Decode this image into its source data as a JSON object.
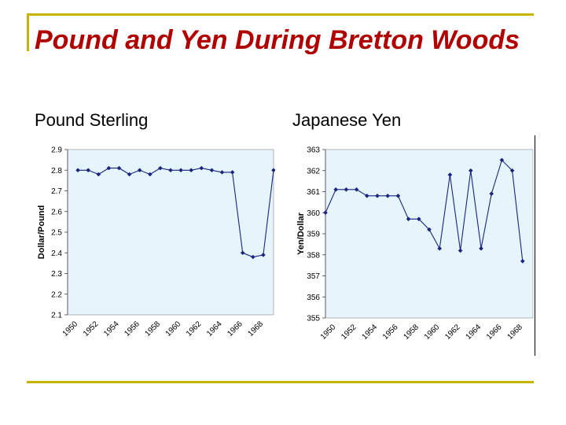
{
  "slide": {
    "title": "Pound and Yen During Bretton Woods",
    "left_heading": "Pound Sterling",
    "right_heading": "Japanese Yen",
    "accent_color": "#c8b400",
    "title_color": "#b00000"
  },
  "chart_data": [
    {
      "type": "line",
      "title": "",
      "xlabel": "",
      "ylabel": "Dollar/Pound",
      "ylim": [
        2.1,
        2.9
      ],
      "yticks": [
        2.1,
        2.2,
        2.3,
        2.4,
        2.5,
        2.6,
        2.7,
        2.8,
        2.9
      ],
      "ytick_labels": [
        "2.1",
        "2.2",
        "2.3",
        "2.4",
        "2.5",
        "2.6",
        "2.7",
        "2.8",
        "2.9"
      ],
      "xlim": [
        1949,
        1969
      ],
      "xticks": [
        1950,
        1952,
        1954,
        1956,
        1958,
        1960,
        1962,
        1964,
        1966,
        1968
      ],
      "xtick_labels": [
        "1950",
        "1952",
        "1954",
        "1956",
        "1958",
        "1960",
        "1962",
        "1964",
        "1966",
        "1968"
      ],
      "grid": false,
      "plot_background": "#e6f4fb",
      "line_color": "#1a237e",
      "series": [
        {
          "x": [
            1950,
            1951,
            1952,
            1953,
            1954,
            1955,
            1956,
            1957,
            1958,
            1959,
            1960,
            1961,
            1962,
            1963,
            1964,
            1965,
            1966,
            1967,
            1968,
            1969
          ],
          "values": [
            2.8,
            2.8,
            2.78,
            2.81,
            2.81,
            2.78,
            2.8,
            2.78,
            2.81,
            2.8,
            2.8,
            2.8,
            2.81,
            2.8,
            2.79,
            2.79,
            2.4,
            2.38,
            2.39,
            2.8
          ]
        }
      ]
    },
    {
      "type": "line",
      "title": "",
      "xlabel": "",
      "ylabel": "Yen/Dollar",
      "ylim": [
        355,
        363
      ],
      "yticks": [
        355,
        356,
        357,
        358,
        359,
        360,
        361,
        362,
        363
      ],
      "ytick_labels": [
        "355",
        "356",
        "357",
        "358",
        "359",
        "360",
        "361",
        "362",
        "363"
      ],
      "xlim": [
        1949,
        1969
      ],
      "xticks": [
        1950,
        1952,
        1954,
        1956,
        1958,
        1960,
        1962,
        1964,
        1966,
        1968
      ],
      "xtick_labels": [
        "1950",
        "1952",
        "1954",
        "1956",
        "1958",
        "1960",
        "1962",
        "1964",
        "1966",
        "1968"
      ],
      "grid": false,
      "plot_background": "#e6f4fb",
      "line_color": "#1a237e",
      "series": [
        {
          "x": [
            1949,
            1950,
            1951,
            1952,
            1953,
            1954,
            1955,
            1956,
            1957,
            1958,
            1959,
            1960,
            1961,
            1962,
            1963,
            1964,
            1965,
            1966,
            1967,
            1968
          ],
          "values": [
            360.0,
            361.1,
            361.1,
            361.1,
            360.8,
            360.8,
            360.8,
            360.8,
            359.7,
            359.7,
            359.2,
            358.3,
            361.8,
            358.2,
            362.0,
            358.3,
            360.9,
            362.5,
            362.0,
            357.7
          ]
        }
      ]
    }
  ]
}
